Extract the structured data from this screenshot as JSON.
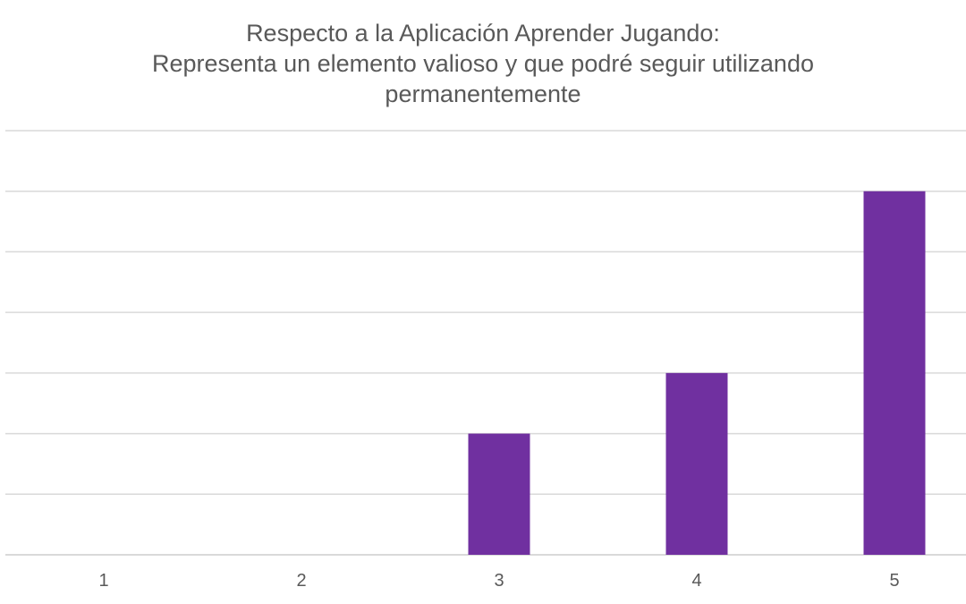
{
  "chart_data": {
    "type": "bar",
    "title": [
      "Respecto a la Aplicación Aprender Jugando:",
      "Representa un elemento valioso y que podré seguir utilizando",
      "permanentemente"
    ],
    "categories": [
      "1",
      "2",
      "3",
      "4",
      "5"
    ],
    "values": [
      0,
      0,
      2,
      3,
      6
    ],
    "ylim": [
      0,
      7
    ],
    "grid": true,
    "legend": "none",
    "bar_color": "#7030A0",
    "grid_color": "#D9D9D9"
  }
}
